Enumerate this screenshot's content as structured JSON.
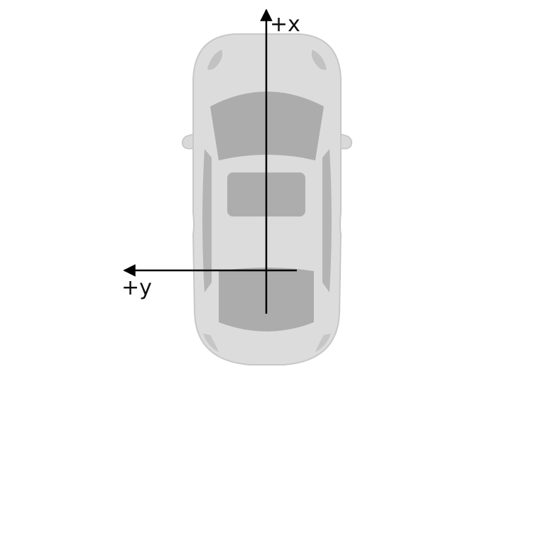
{
  "axes": {
    "x_axis_label": "+x",
    "y_axis_label": "+y"
  },
  "vehicle": {
    "icon": "car-top-view-icon"
  },
  "colors": {
    "car_body": "#dcdcdc",
    "car_outline": "#c4c4c4",
    "car_glass": "#acacac",
    "axis": "#000000"
  }
}
